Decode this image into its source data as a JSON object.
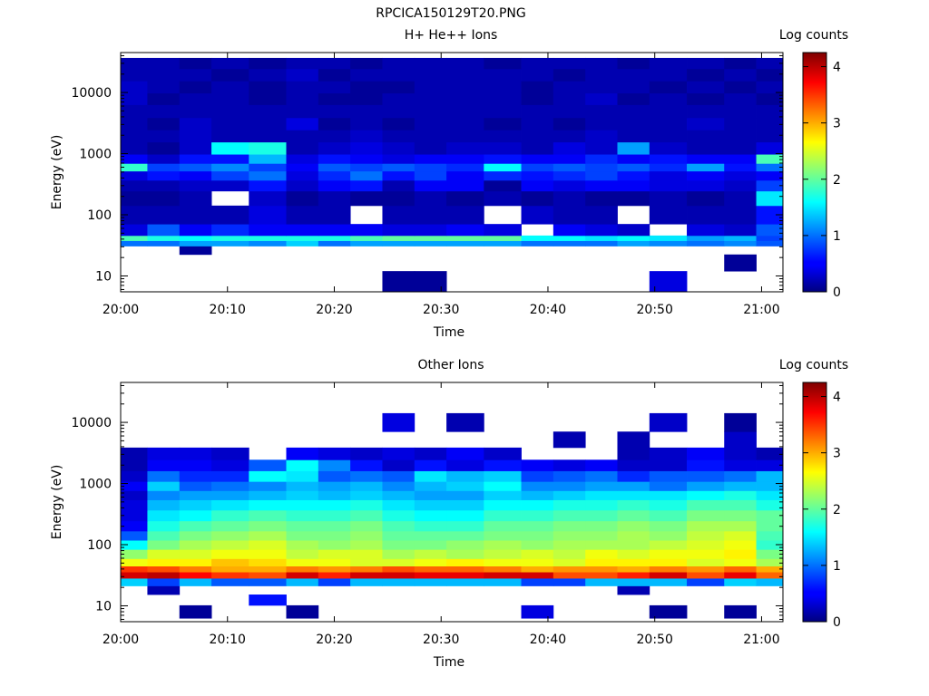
{
  "figure_title": "RPCICA150129T20.PNG",
  "chart_data": [
    {
      "type": "heatmap",
      "title": "H+ He++ Ions",
      "xlabel": "Time",
      "ylabel": "Energy (eV)",
      "x_ticks": [
        "20:00",
        "20:10",
        "20:20",
        "20:30",
        "20:40",
        "20:50",
        "21:00"
      ],
      "y_ticks": [
        "10",
        "100",
        "1000",
        "10000"
      ],
      "y_scale": "log",
      "x_range": [
        "20:00",
        "21:02"
      ],
      "ylim": [
        5.5,
        45000
      ],
      "grid": false,
      "colorbar": {
        "label": "Log counts",
        "ticks": [
          "0",
          "1",
          "2",
          "3",
          "4"
        ],
        "range": [
          0,
          4.25
        ],
        "colormap": "jet"
      },
      "time_bins": [
        "20:01",
        "20:04",
        "20:07",
        "20:10",
        "20:14",
        "20:17",
        "20:20",
        "20:23",
        "20:26",
        "20:29",
        "20:32",
        "20:36",
        "20:39",
        "20:42",
        "20:45",
        "20:48",
        "20:51",
        "20:55",
        "20:58",
        "21:01"
      ],
      "energy_bins_eV": [
        8,
        18,
        28,
        34,
        42,
        50,
        100,
        200,
        300,
        450,
        600,
        800,
        1200,
        2000,
        3000,
        5000,
        8000,
        12000,
        20000,
        30000
      ],
      "counts_log10": [
        [
          null,
          null,
          null,
          null,
          null,
          null,
          null,
          null,
          0.1,
          0.1,
          null,
          null,
          null,
          null,
          null,
          null,
          0.4,
          null,
          null,
          null
        ],
        [
          null,
          null,
          null,
          null,
          null,
          null,
          null,
          null,
          null,
          null,
          null,
          null,
          null,
          null,
          null,
          null,
          null,
          null,
          0.1,
          null
        ],
        [
          null,
          null,
          0.1,
          null,
          null,
          null,
          null,
          null,
          null,
          null,
          null,
          null,
          null,
          null,
          null,
          null,
          null,
          null,
          null,
          null
        ],
        [
          1.0,
          1.0,
          1.2,
          1.2,
          1.1,
          1.4,
          1.0,
          1.2,
          1.2,
          1.2,
          1.2,
          1.2,
          1.0,
          1.0,
          1.0,
          1.2,
          1.1,
          1.0,
          1.1,
          0.9
        ],
        [
          1.9,
          1.7,
          1.6,
          1.7,
          1.7,
          1.7,
          1.7,
          1.9,
          2.0,
          2.0,
          2.0,
          2.0,
          1.6,
          1.6,
          1.5,
          1.6,
          1.5,
          1.2,
          1.3,
          0.8
        ],
        [
          0.4,
          0.9,
          0.5,
          0.7,
          0.5,
          0.5,
          0.5,
          0.5,
          0.4,
          0.4,
          0.5,
          0.4,
          null,
          0.5,
          0.4,
          0.3,
          null,
          0.4,
          0.3,
          0.9
        ],
        [
          0.2,
          0.2,
          0.2,
          0.2,
          0.4,
          0.2,
          0.2,
          null,
          0.2,
          0.2,
          0.2,
          null,
          0.3,
          0.2,
          0.2,
          null,
          0.2,
          0.2,
          0.2,
          0.6
        ],
        [
          0.1,
          0.1,
          0.2,
          null,
          0.3,
          0.1,
          0.2,
          0.1,
          0.1,
          0.2,
          0.1,
          0.2,
          0.1,
          0.2,
          0.1,
          0.1,
          0.2,
          0.1,
          0.2,
          1.5
        ],
        [
          0.2,
          0.2,
          0.3,
          0.3,
          0.6,
          0.3,
          0.5,
          0.6,
          0.2,
          0.5,
          0.5,
          0.1,
          0.5,
          0.4,
          0.5,
          0.5,
          0.4,
          0.4,
          0.3,
          0.8
        ],
        [
          0.4,
          0.6,
          0.5,
          0.8,
          1.0,
          0.4,
          0.7,
          1.0,
          0.6,
          0.8,
          0.5,
          0.7,
          0.6,
          0.7,
          0.8,
          0.6,
          0.4,
          0.5,
          0.4,
          0.5
        ],
        [
          1.8,
          0.8,
          0.9,
          1.1,
          0.8,
          0.5,
          0.9,
          0.8,
          0.9,
          0.8,
          0.7,
          1.6,
          0.8,
          0.9,
          0.8,
          0.9,
          0.7,
          1.2,
          0.6,
          1.0
        ],
        [
          0.5,
          0.3,
          0.6,
          0.6,
          1.3,
          0.4,
          0.6,
          0.5,
          0.4,
          0.5,
          0.5,
          0.6,
          0.5,
          0.5,
          0.7,
          0.5,
          0.6,
          0.5,
          0.5,
          1.9
        ],
        [
          0.2,
          0.1,
          0.3,
          1.6,
          1.7,
          0.2,
          0.3,
          0.4,
          0.3,
          0.2,
          0.3,
          0.3,
          0.2,
          0.4,
          0.3,
          1.2,
          0.3,
          0.2,
          0.2,
          0.4
        ],
        [
          0.2,
          0.2,
          0.3,
          0.2,
          0.2,
          0.2,
          0.2,
          0.3,
          0.2,
          0.2,
          0.2,
          0.2,
          0.2,
          0.2,
          0.3,
          0.2,
          0.2,
          0.2,
          0.2,
          0.2
        ],
        [
          0.2,
          0.1,
          0.3,
          0.2,
          0.2,
          0.4,
          0.1,
          0.2,
          0.1,
          0.2,
          0.2,
          0.1,
          0.2,
          0.1,
          0.2,
          0.2,
          0.2,
          0.3,
          0.2,
          0.2
        ],
        [
          0.2,
          0.2,
          0.2,
          0.2,
          0.2,
          0.2,
          0.2,
          0.2,
          0.2,
          0.2,
          0.2,
          0.2,
          0.2,
          0.2,
          0.2,
          0.2,
          0.2,
          0.2,
          0.2,
          0.2
        ],
        [
          0.3,
          0.1,
          0.2,
          0.2,
          0.1,
          0.2,
          0.1,
          0.1,
          0.2,
          0.2,
          0.2,
          0.2,
          0.1,
          0.2,
          0.3,
          0.1,
          0.2,
          0.1,
          0.2,
          0.1
        ],
        [
          0.3,
          0.2,
          0.1,
          0.2,
          0.1,
          0.2,
          0.2,
          0.1,
          0.1,
          0.2,
          0.2,
          0.2,
          0.1,
          0.2,
          0.2,
          0.2,
          0.1,
          0.2,
          0.1,
          0.2
        ],
        [
          0.2,
          0.2,
          0.2,
          0.1,
          0.2,
          0.3,
          0.1,
          0.2,
          0.2,
          0.2,
          0.2,
          0.2,
          0.2,
          0.1,
          0.2,
          0.2,
          0.2,
          0.1,
          0.2,
          0.1
        ],
        [
          0.2,
          0.2,
          0.1,
          0.2,
          0.1,
          0.2,
          0.2,
          0.1,
          0.2,
          0.2,
          0.2,
          0.1,
          0.2,
          0.2,
          0.2,
          0.1,
          0.2,
          0.2,
          0.1,
          0.2
        ]
      ]
    },
    {
      "type": "heatmap",
      "title": "Other Ions",
      "xlabel": "Time",
      "ylabel": "Energy (eV)",
      "x_ticks": [
        "20:00",
        "20:10",
        "20:20",
        "20:30",
        "20:40",
        "20:50",
        "21:00"
      ],
      "y_ticks": [
        "10",
        "100",
        "1000",
        "10000"
      ],
      "y_scale": "log",
      "x_range": [
        "20:00",
        "21:02"
      ],
      "ylim": [
        5.5,
        45000
      ],
      "grid": false,
      "colorbar": {
        "label": "Log counts",
        "ticks": [
          "0",
          "1",
          "2",
          "3",
          "4"
        ],
        "range": [
          0,
          4.25
        ],
        "colormap": "jet"
      },
      "time_bins": [
        "20:01",
        "20:04",
        "20:07",
        "20:10",
        "20:14",
        "20:17",
        "20:20",
        "20:23",
        "20:26",
        "20:29",
        "20:32",
        "20:36",
        "20:39",
        "20:42",
        "20:45",
        "20:48",
        "20:51",
        "20:55",
        "20:58",
        "21:01"
      ],
      "energy_bins_eV": [
        8,
        13,
        18,
        25,
        32,
        40,
        50,
        70,
        100,
        140,
        200,
        300,
        450,
        650,
        900,
        1300,
        2000,
        3000,
        5000,
        10000
      ],
      "counts_log10": [
        [
          null,
          null,
          0.1,
          null,
          null,
          0.1,
          null,
          null,
          null,
          null,
          null,
          null,
          0.4,
          null,
          null,
          null,
          0.1,
          null,
          0.1,
          null
        ],
        [
          null,
          null,
          null,
          null,
          0.6,
          null,
          null,
          null,
          null,
          null,
          null,
          null,
          null,
          null,
          null,
          null,
          null,
          null,
          null,
          null
        ],
        [
          null,
          0.2,
          null,
          null,
          null,
          null,
          null,
          null,
          null,
          null,
          null,
          null,
          null,
          null,
          null,
          0.2,
          null,
          null,
          null,
          null
        ],
        [
          1.4,
          0.8,
          1.3,
          0.9,
          0.9,
          1.3,
          0.8,
          1.3,
          1.3,
          1.3,
          1.3,
          1.3,
          0.8,
          0.8,
          1.3,
          1.3,
          1.3,
          0.8,
          1.4,
          1.3
        ],
        [
          3.9,
          4.0,
          3.7,
          3.5,
          3.4,
          3.9,
          3.6,
          3.9,
          3.9,
          3.8,
          3.8,
          3.9,
          3.9,
          3.4,
          3.4,
          3.6,
          3.9,
          3.4,
          3.8,
          3.3
        ],
        [
          3.5,
          3.4,
          3.2,
          3.0,
          3.0,
          3.2,
          3.1,
          3.2,
          3.4,
          3.3,
          3.3,
          3.2,
          3.0,
          3.1,
          3.1,
          3.0,
          3.2,
          3.1,
          3.3,
          3.0
        ],
        [
          2.6,
          2.7,
          2.7,
          2.9,
          2.8,
          2.6,
          2.6,
          2.5,
          2.5,
          2.6,
          2.7,
          2.6,
          2.6,
          2.5,
          2.7,
          2.7,
          2.7,
          2.5,
          2.6,
          2.3
        ],
        [
          2.2,
          2.5,
          2.5,
          2.6,
          2.6,
          2.4,
          2.5,
          2.5,
          2.3,
          2.4,
          2.3,
          2.4,
          2.5,
          2.4,
          2.6,
          2.5,
          2.6,
          2.6,
          2.7,
          2.1
        ],
        [
          1.6,
          2.1,
          2.3,
          2.4,
          2.5,
          2.3,
          2.2,
          2.3,
          2.1,
          2.1,
          2.2,
          2.3,
          2.2,
          2.3,
          2.3,
          2.3,
          2.4,
          2.5,
          2.6,
          1.8
        ],
        [
          0.9,
          1.9,
          2.1,
          2.2,
          2.3,
          2.1,
          2.1,
          2.2,
          2.0,
          2.0,
          2.0,
          2.1,
          2.1,
          2.2,
          2.2,
          2.3,
          2.2,
          2.4,
          2.5,
          1.9
        ],
        [
          0.5,
          1.7,
          1.9,
          2.0,
          2.1,
          2.0,
          2.0,
          2.1,
          1.9,
          1.8,
          1.8,
          2.0,
          2.0,
          2.1,
          2.1,
          2.2,
          2.1,
          2.3,
          2.3,
          2.0
        ],
        [
          0.4,
          1.5,
          1.6,
          1.8,
          1.9,
          1.8,
          1.8,
          1.9,
          1.7,
          1.6,
          1.6,
          1.8,
          1.8,
          1.9,
          1.9,
          2.0,
          1.9,
          2.1,
          2.1,
          2.0
        ],
        [
          0.4,
          1.3,
          1.4,
          1.5,
          1.6,
          1.6,
          1.6,
          1.7,
          1.5,
          1.4,
          1.4,
          1.6,
          1.6,
          1.7,
          1.7,
          1.8,
          1.7,
          1.9,
          1.9,
          1.7
        ],
        [
          0.3,
          1.1,
          1.2,
          1.2,
          1.3,
          1.4,
          1.3,
          1.4,
          1.3,
          1.2,
          1.2,
          1.4,
          1.3,
          1.4,
          1.5,
          1.5,
          1.5,
          1.6,
          1.7,
          1.5
        ],
        [
          0.5,
          1.4,
          0.9,
          1.0,
          1.1,
          1.3,
          1.2,
          1.3,
          1.1,
          1.3,
          1.4,
          1.6,
          1.1,
          1.1,
          1.2,
          1.2,
          1.0,
          1.2,
          1.3,
          1.3
        ],
        [
          0.3,
          1.0,
          0.7,
          0.7,
          1.6,
          1.5,
          0.9,
          1.0,
          0.9,
          1.5,
          1.3,
          1.4,
          0.8,
          0.9,
          1.0,
          0.7,
          0.9,
          0.9,
          1.0,
          1.3
        ],
        [
          0.2,
          0.5,
          0.5,
          0.4,
          0.9,
          1.6,
          1.1,
          0.6,
          0.3,
          0.6,
          0.4,
          0.6,
          0.5,
          0.4,
          0.5,
          0.3,
          0.3,
          0.6,
          0.4,
          0.4
        ],
        [
          0.2,
          0.4,
          0.4,
          0.3,
          null,
          0.5,
          0.4,
          0.3,
          0.4,
          0.3,
          0.5,
          0.3,
          null,
          null,
          null,
          0.2,
          0.3,
          0.5,
          0.3,
          0.2
        ],
        [
          null,
          null,
          null,
          null,
          null,
          null,
          null,
          null,
          null,
          null,
          null,
          null,
          null,
          0.2,
          null,
          0.2,
          null,
          null,
          0.3,
          null
        ],
        [
          null,
          null,
          null,
          null,
          null,
          null,
          null,
          null,
          0.4,
          null,
          0.2,
          null,
          null,
          null,
          null,
          null,
          0.3,
          null,
          0.1,
          null
        ]
      ]
    }
  ]
}
